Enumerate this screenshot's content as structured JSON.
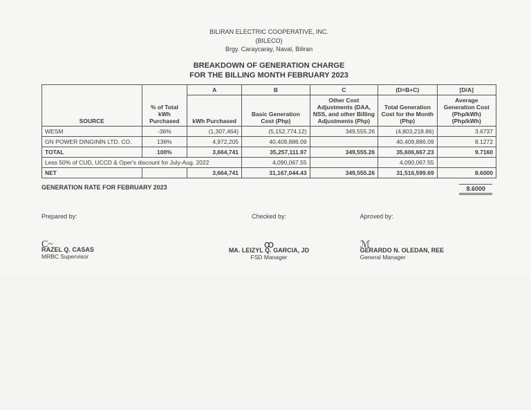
{
  "header": {
    "line1": "BILIRAN ELECTRIC COOPERATIVE, INC.",
    "line2": "(BILECO)",
    "line3": "Brgy. Caraycaray, Naval, Biliran"
  },
  "title": {
    "line1": "BREAKDOWN OF GENERATION CHARGE",
    "line2": "FOR THE BILLING MONTH FEBRUARY 2023"
  },
  "columns": {
    "source": "SOURCE",
    "pct": "% of Total kWh Purchased",
    "a_top": "A",
    "a": "kWh Purchased",
    "b_top": "B",
    "b": "Basic Generation Cost (Php)",
    "c_top": "C",
    "c": "Other Cost Adjustments (DAA, NSS, and other Billing Adjustments (Php)",
    "d_top": "(D=B+C)",
    "d": "Total Generation Cost for the Month (Php)",
    "e_top": "[D/A]",
    "e": "Average Generation Cost (Php/kWh) (Php/kWh)"
  },
  "rows": {
    "wesm": {
      "src": "WESM",
      "pct": "-36%",
      "a": "(1,307,464)",
      "b": "(5,152,774.12)",
      "c": "349,555.26",
      "d": "(4,803,218.86)",
      "e": "3.6737"
    },
    "gnp": {
      "src": "GN POWER DINGININ LTD. CO.",
      "pct": "136%",
      "a": "4,972,205",
      "b": "40,409,886.09",
      "c": "",
      "d": "40,409,886.09",
      "e": "8.1272"
    },
    "total": {
      "src": "TOTAL",
      "pct": "100%",
      "a": "3,664,741",
      "b": "35,257,111.97",
      "c": "349,555.26",
      "d": "35,606,667.23",
      "e": "9.7160"
    },
    "less": {
      "src": "Less 50% of CUD, UCCD & Oper's discount for July-Aug. 2022",
      "b": "4,090,067.55",
      "d": "4,090,067.55"
    },
    "net": {
      "src": "NET",
      "a": "3,664,741",
      "b": "31,167,044.43",
      "c": "349,555.26",
      "d": "31,516,599.69",
      "e": "8.6000"
    }
  },
  "rate": {
    "label": "GENERATION RATE FOR FEBRUARY 2023",
    "value": "8.6000"
  },
  "signatures": {
    "prepared": {
      "role": "Prepared by:",
      "name": "RAZEL Q. CASAS",
      "title": "MRBC Supervisor"
    },
    "checked": {
      "role": "Checked by:",
      "name": "MA. LEIZYL Q. GARCIA, JD",
      "title": "FSD Manager"
    },
    "approved": {
      "role": "Aproved by:",
      "name": "GERARDO N. OLEDAN, REE",
      "title": "General Manager"
    }
  }
}
